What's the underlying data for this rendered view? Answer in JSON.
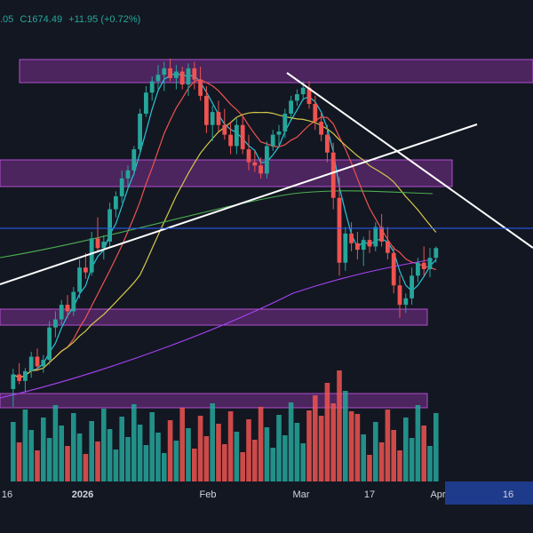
{
  "header": {
    "open_fragment": ".05",
    "close_label": "C1674.49",
    "change": "+11.95 (+0.72%)"
  },
  "colors": {
    "background": "#131722",
    "up": "#26a69a",
    "down": "#ef5350",
    "zone_fill": "#7b2f8f",
    "zone_stroke": "#b04fcf",
    "trendline": "#ffffff",
    "horizontal_line": "#2962ff",
    "ma_fast": "#26c6da",
    "ma_mid": "#ef5350",
    "ma_slow": "#d4c84a",
    "ma_long": "#4caf50",
    "ma_very_long": "#a642f5",
    "axis_box": "#1e3a8a"
  },
  "chart_data": {
    "type": "candlestick",
    "x_ticks": [
      {
        "label": "16",
        "bold": false
      },
      {
        "label": "2026",
        "bold": true
      },
      {
        "label": "Feb",
        "bold": false
      },
      {
        "label": "Mar",
        "bold": false
      },
      {
        "label": "17",
        "bold": false
      },
      {
        "label": "Apr",
        "bold": false
      },
      {
        "label": "16",
        "bold": false
      }
    ],
    "candles": [
      [
        0.0,
        0.0,
        0.0,
        0.0
      ],
      [
        1500,
        1525,
        1478,
        1518
      ],
      [
        1518,
        1532,
        1506,
        1510
      ],
      [
        1510,
        1526,
        1496,
        1522
      ],
      [
        1522,
        1546,
        1514,
        1540
      ],
      [
        1540,
        1550,
        1522,
        1528
      ],
      [
        1528,
        1542,
        1520,
        1536
      ],
      [
        1536,
        1584,
        1530,
        1576
      ],
      [
        1576,
        1596,
        1564,
        1586
      ],
      [
        1586,
        1610,
        1580,
        1604
      ],
      [
        1604,
        1616,
        1588,
        1596
      ],
      [
        1596,
        1626,
        1590,
        1620
      ],
      [
        1620,
        1660,
        1612,
        1650
      ],
      [
        1650,
        1668,
        1636,
        1644
      ],
      [
        1644,
        1694,
        1640,
        1686
      ],
      [
        1686,
        1712,
        1670,
        1674
      ],
      [
        1674,
        1690,
        1660,
        1682
      ],
      [
        1682,
        1730,
        1676,
        1722
      ],
      [
        1722,
        1744,
        1712,
        1738
      ],
      [
        1738,
        1770,
        1730,
        1760
      ],
      [
        1760,
        1776,
        1748,
        1770
      ],
      [
        1770,
        1800,
        1764,
        1796
      ],
      [
        1796,
        1846,
        1790,
        1840
      ],
      [
        1840,
        1874,
        1836,
        1866
      ],
      [
        1866,
        1886,
        1856,
        1880
      ],
      [
        1880,
        1900,
        1870,
        1888
      ],
      [
        1888,
        1904,
        1868,
        1896
      ],
      [
        1896,
        1908,
        1880,
        1884
      ],
      [
        1884,
        1900,
        1870,
        1892
      ],
      [
        1892,
        1898,
        1870,
        1876
      ],
      [
        1876,
        1902,
        1862,
        1896
      ],
      [
        1896,
        1904,
        1870,
        1882
      ],
      [
        1882,
        1898,
        1856,
        1862
      ],
      [
        1862,
        1874,
        1816,
        1826
      ],
      [
        1826,
        1850,
        1806,
        1842
      ],
      [
        1842,
        1856,
        1818,
        1826
      ],
      [
        1826,
        1846,
        1808,
        1814
      ],
      [
        1814,
        1830,
        1790,
        1800
      ],
      [
        1800,
        1834,
        1790,
        1826
      ],
      [
        1826,
        1836,
        1790,
        1796
      ],
      [
        1796,
        1814,
        1770,
        1780
      ],
      [
        1780,
        1794,
        1768,
        1776
      ],
      [
        1776,
        1786,
        1760,
        1766
      ],
      [
        1766,
        1806,
        1760,
        1800
      ],
      [
        1800,
        1820,
        1794,
        1814
      ],
      [
        1814,
        1826,
        1798,
        1818
      ],
      [
        1818,
        1846,
        1810,
        1840
      ],
      [
        1840,
        1862,
        1832,
        1856
      ],
      [
        1856,
        1870,
        1850,
        1864
      ],
      [
        1864,
        1880,
        1856,
        1872
      ],
      [
        1872,
        1880,
        1846,
        1852
      ],
      [
        1852,
        1862,
        1820,
        1830
      ],
      [
        1830,
        1842,
        1806,
        1814
      ],
      [
        1814,
        1826,
        1780,
        1792
      ],
      [
        1792,
        1804,
        1722,
        1736
      ],
      [
        1736,
        1762,
        1640,
        1656
      ],
      [
        1656,
        1700,
        1646,
        1692
      ],
      [
        1692,
        1706,
        1670,
        1680
      ],
      [
        1680,
        1694,
        1660,
        1672
      ],
      [
        1672,
        1688,
        1652,
        1684
      ],
      [
        1684,
        1696,
        1668,
        1676
      ],
      [
        1676,
        1706,
        1670,
        1700
      ],
      [
        1700,
        1716,
        1676,
        1682
      ],
      [
        1682,
        1700,
        1660,
        1668
      ],
      [
        1668,
        1676,
        1618,
        1628
      ],
      [
        1628,
        1640,
        1588,
        1604
      ],
      [
        1604,
        1618,
        1594,
        1612
      ],
      [
        1612,
        1650,
        1604,
        1640
      ],
      [
        1640,
        1662,
        1632,
        1656
      ],
      [
        1656,
        1676,
        1640,
        1648
      ],
      [
        1648,
        1674,
        1638,
        1662
      ],
      [
        1662,
        1676,
        1656,
        1674
      ]
    ],
    "price_range": [
      1580,
      1920
    ]
  }
}
